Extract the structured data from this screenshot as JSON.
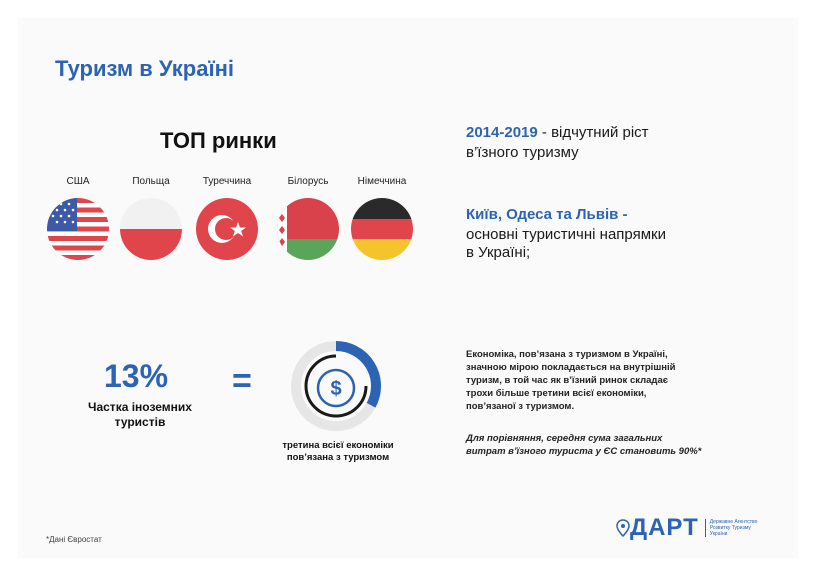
{
  "title": "Туризм в Україні",
  "top_markets": {
    "heading": "ТОП ринки",
    "countries": [
      {
        "label": "США",
        "flag": "usa-flag-icon"
      },
      {
        "label": "Польща",
        "flag": "poland-flag-icon"
      },
      {
        "label": "Туреччина",
        "flag": "turkey-flag-icon"
      },
      {
        "label": "Білорусь",
        "flag": "belarus-flag-icon"
      },
      {
        "label": "Німеччина",
        "flag": "germany-flag-icon"
      }
    ]
  },
  "facts": {
    "growth_years": "2014-2019",
    "growth_rest": " - відчутний ріст",
    "growth_line2": "в’їзного туризму",
    "cities": "Київ, Одеса та Львів -",
    "cities_line2": "основні туристичні напрямки",
    "cities_line3": "в Україні;"
  },
  "stat": {
    "percent": "13%",
    "label_line1": "Частка іноземних",
    "label_line2": "туристів",
    "equals": "=",
    "caption_line1": "третина всієї економіки",
    "caption_line2": "пов’язана з туризмом",
    "ring_fill": 0.33
  },
  "notes": {
    "para1_l1": "Економіка, пов’язана з туризмом в Україні,",
    "para1_l2": "значною мірою покладається на внутрішній",
    "para1_l3": "туризм, в той час як в’їзний ринок складає",
    "para1_l4": "трохи більше третини всієї економіки,",
    "para1_l5": "пов’язаної з туризмом.",
    "para2_l1": "Для порівняння, середня сума загальних",
    "para2_l2": "витрат в’їзного туриста у ЄС становить 90%*"
  },
  "source": "*Дані Євростат",
  "logo": {
    "name": "ДАРТ",
    "subtitle_l1": "Державне Агентство",
    "subtitle_l2": "Розвитку Туризму",
    "subtitle_l3": "України"
  },
  "colors": {
    "brand_blue": "#2c63b5",
    "text": "#1a1a1a"
  }
}
